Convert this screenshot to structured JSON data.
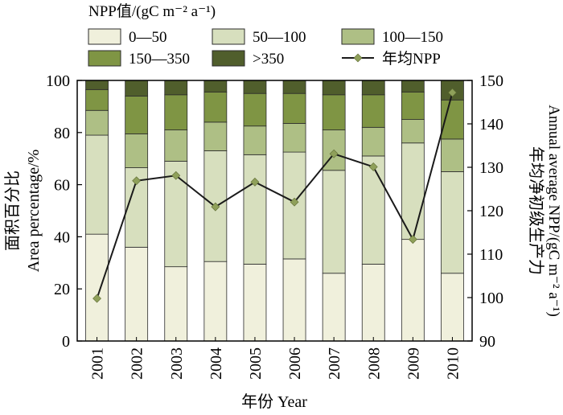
{
  "legend": {
    "title": "NPP值/(gC m⁻² a⁻¹)",
    "line_label": "年均NPP"
  },
  "chart_data": {
    "type": "bar",
    "stacked": true,
    "categories": [
      "2001",
      "2002",
      "2003",
      "2004",
      "2005",
      "2006",
      "2007",
      "2008",
      "2009",
      "2010"
    ],
    "xlabel": "年份 Year",
    "ylabel_cn": "面积百分比",
    "ylabel_en": "Area percentage/%",
    "ylim": [
      0,
      100
    ],
    "yticks": [
      0,
      20,
      40,
      60,
      80,
      100
    ],
    "y2label_cn": "年均净初级生产力",
    "y2label_en": "Annual average NPP/(gC m⁻² a⁻¹)",
    "y2lim": [
      90,
      150
    ],
    "y2ticks": [
      90,
      100,
      110,
      120,
      130,
      140,
      150
    ],
    "legend_position": "top",
    "grid": false,
    "series": [
      {
        "name": "0—50",
        "color": "#f0f0dc",
        "values": [
          41,
          36,
          28.5,
          30.5,
          29.5,
          31.5,
          26,
          29.5,
          39,
          26
        ]
      },
      {
        "name": "50—100",
        "color": "#d7dfbe",
        "values": [
          38,
          30.5,
          40.5,
          42.5,
          42,
          41,
          39.5,
          41.5,
          37,
          39
        ]
      },
      {
        "name": "100—150",
        "color": "#aebf85",
        "values": [
          9.5,
          13,
          12,
          11,
          11,
          11,
          15.5,
          11,
          9,
          12.5
        ]
      },
      {
        "name": "150—350",
        "color": "#7f9544",
        "values": [
          8,
          14.5,
          13.5,
          11.5,
          12.5,
          11.5,
          13.5,
          12.5,
          10.5,
          15
        ]
      },
      {
        "name": ">350",
        "color": "#505e2c",
        "values": [
          3.5,
          6,
          5.5,
          4.5,
          5,
          5,
          5.5,
          5.5,
          4.5,
          7.5
        ]
      }
    ],
    "line_series": {
      "name": "年均NPP",
      "axis": "right",
      "line_color": "#1a1a1a",
      "marker_color": "#8fa05a",
      "values": [
        99.8,
        126.9,
        128.1,
        120.9,
        126.6,
        122,
        133.1,
        130.1,
        113.4,
        147.2
      ]
    }
  }
}
